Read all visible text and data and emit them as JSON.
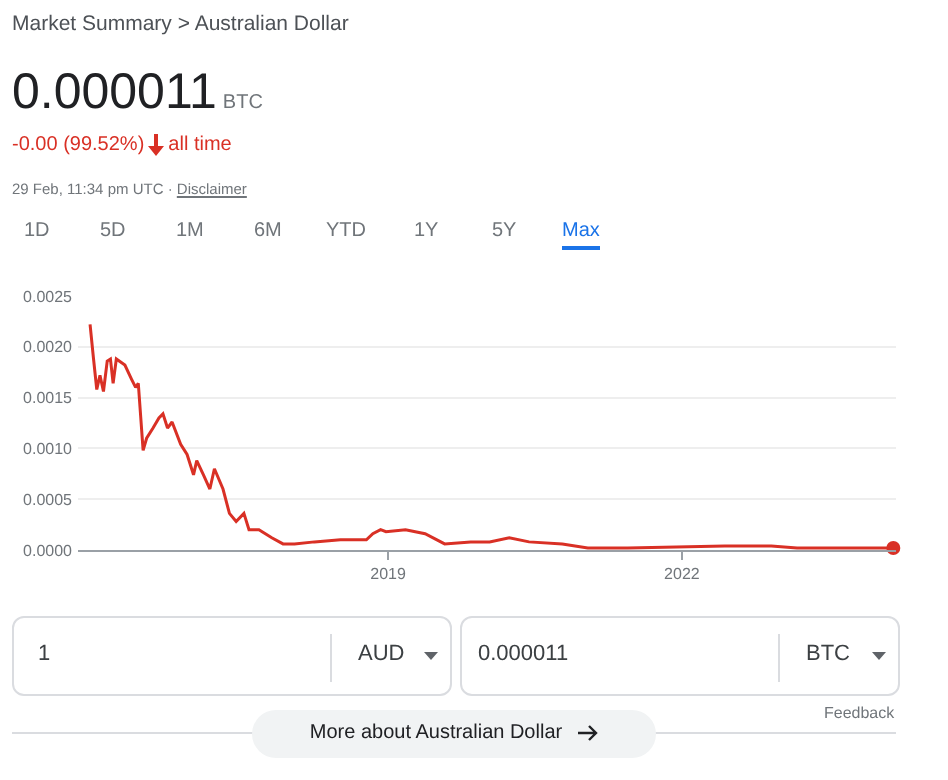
{
  "chart_data": {
    "type": "line",
    "title": "Market Summary > Australian Dollar",
    "annotations": [
      "0.000011",
      "BTC",
      "-0.00 (99.52%)",
      "all time",
      "29 Feb, 11:34 pm UTC ·",
      "Disclaimer",
      "1D",
      "5D",
      "1M",
      "6M",
      "YTD",
      "1Y",
      "5Y",
      "Max",
      "1",
      "AUD",
      "0.000011",
      "BTC",
      "Feedback",
      "More about Australian Dollar"
    ],
    "series": [
      {
        "color": "#d93025",
        "x": [
          "2015-12-16",
          "2015-12-29",
          "2016-01-10",
          "2016-01-22",
          "2016-02-04",
          "2016-02-18",
          "2016-03-01",
          "2016-03-11",
          "2016-03-23",
          "2016-04-24",
          "2016-05-19",
          "2016-06-03",
          "2016-06-13",
          "2016-07-01",
          "2016-07-14",
          "2016-08-07",
          "2016-08-29",
          "2016-09-13",
          "2016-09-30",
          "2016-10-17",
          "2016-11-18",
          "2016-12-12",
          "2017-01-05",
          "2017-01-17",
          "2017-02-11",
          "2017-03-07",
          "2017-03-24",
          "2017-04-25",
          "2017-05-19",
          "2017-06-13",
          "2017-07-12",
          "2017-07-31",
          "2017-09-06",
          "2017-10-24",
          "2017-12-05",
          "2018-01-17",
          "2018-04-01",
          "2018-07-07",
          "2018-10-12",
          "2018-11-05",
          "2018-12-04",
          "2018-12-24",
          "2019-03-07",
          "2019-05-19",
          "2019-07-31",
          "2019-11-05",
          "2019-12-24",
          "2020-01-15",
          "2020-03-28",
          "2020-06-10",
          "2020-10-12",
          "2021-01-15",
          "2021-06-13",
          "2022-06-10",
          "2022-12-01",
          "2023-03-07",
          "2024-02-29"
        ],
        "values": [
          0.00222,
          0.00188,
          0.00158,
          0.00172,
          0.00156,
          0.00186,
          0.00188,
          0.00164,
          0.00188,
          0.00182,
          0.00168,
          0.0016,
          0.00164,
          0.00098,
          0.0011,
          0.0012,
          0.0013,
          0.00134,
          0.0012,
          0.00126,
          0.00104,
          0.00094,
          0.00074,
          0.00088,
          0.00074,
          0.0006,
          0.0008,
          0.0006,
          0.00036,
          0.00028,
          0.00036,
          0.0002,
          0.0002,
          0.00012,
          6e-05,
          6e-05,
          8e-05,
          0.0001,
          0.0001,
          0.00016,
          0.0002,
          0.00018,
          0.0002,
          0.00016,
          6e-05,
          8e-05,
          8e-05,
          8e-05,
          0.00012,
          8e-05,
          6e-05,
          2e-05,
          2e-05,
          4e-05,
          4e-05,
          2e-05,
          2e-05
        ]
      },
      {
        "type": "scatter",
        "color": "#d93025",
        "x": [
          "2024-02-29"
        ],
        "values": [
          2e-05
        ]
      }
    ],
    "xlim": [
      "2015-11-01",
      "2024-03-10"
    ],
    "xticks": [
      {
        "value": "2019-01-01",
        "label": "2019"
      },
      {
        "value": "2022-01-01",
        "label": "2022"
      }
    ],
    "ylim": [
      0,
      0.0025
    ],
    "yticks": [
      {
        "value": 0,
        "label": "0.0000"
      },
      {
        "value": 0.0005,
        "label": "0.0005"
      },
      {
        "value": 0.001,
        "label": "0.0010"
      },
      {
        "value": 0.0015,
        "label": "0.0015"
      },
      {
        "value": 0.002,
        "label": "0.0020"
      },
      {
        "value": 0.0025,
        "label": "0.0025"
      }
    ],
    "grid": "y",
    "line_style": "solid"
  }
}
